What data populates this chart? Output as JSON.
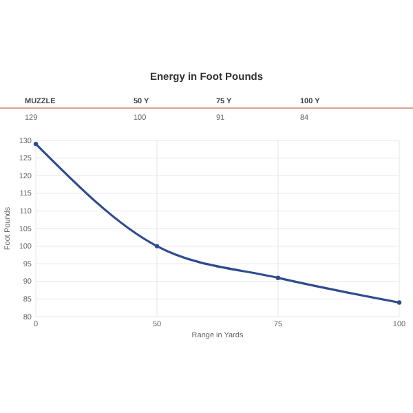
{
  "chart_data": {
    "type": "line",
    "title": "Energy in Foot Pounds",
    "categories": [
      "0",
      "50",
      "75",
      "100"
    ],
    "series": [
      {
        "color": "#2e4d8f",
        "values": [
          129,
          100,
          91,
          84
        ]
      }
    ],
    "xlabel": "Range in Yards",
    "ylabel": "Foot Pounds",
    "ylim": [
      80,
      130
    ],
    "yticks": [
      80,
      85,
      90,
      95,
      100,
      105,
      110,
      115,
      120,
      125,
      130
    ],
    "grid": true,
    "marker": "circle",
    "annotations": [
      "MUZZLE",
      "50 Y",
      "75 Y",
      "100 Y",
      "129",
      "100",
      "91",
      "84"
    ]
  }
}
